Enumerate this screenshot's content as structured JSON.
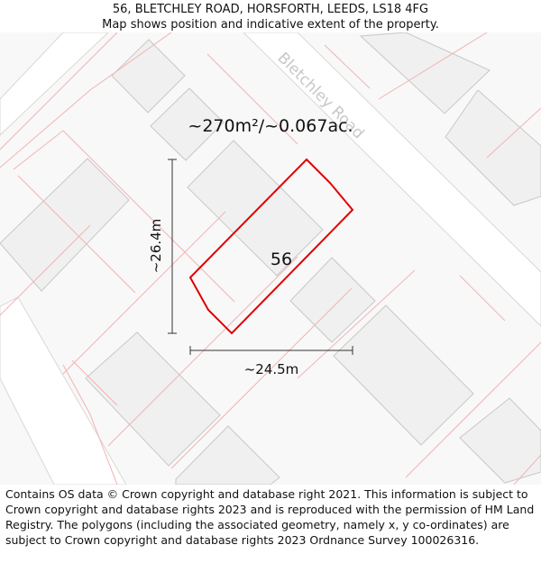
{
  "header": {
    "title": "56, BLETCHLEY ROAD, HORSFORTH, LEEDS, LS18 4FG",
    "subtitle": "Map shows position and indicative extent of the property."
  },
  "map": {
    "road_label": "Bletchley Road",
    "area_label": "~270m²/~0.067ac.",
    "house_number": "56",
    "height_label": "~26.4m",
    "width_label": "~24.5m",
    "colors": {
      "background": "#f8f8f8",
      "road": "#ffffff",
      "building_fill": "#f0f0f0",
      "building_stroke": "#c8c8c8",
      "boundary_lines": "#f4b3b3",
      "property_outline": "#e00000",
      "road_label": "#c8c8c8"
    }
  },
  "footer": {
    "copyright": "Contains OS data © Crown copyright and database right 2021. This information is subject to Crown copyright and database rights 2023 and is reproduced with the permission of HM Land Registry. The polygons (including the associated geometry, namely x, y co-ordinates) are subject to Crown copyright and database rights 2023 Ordnance Survey 100026316."
  }
}
